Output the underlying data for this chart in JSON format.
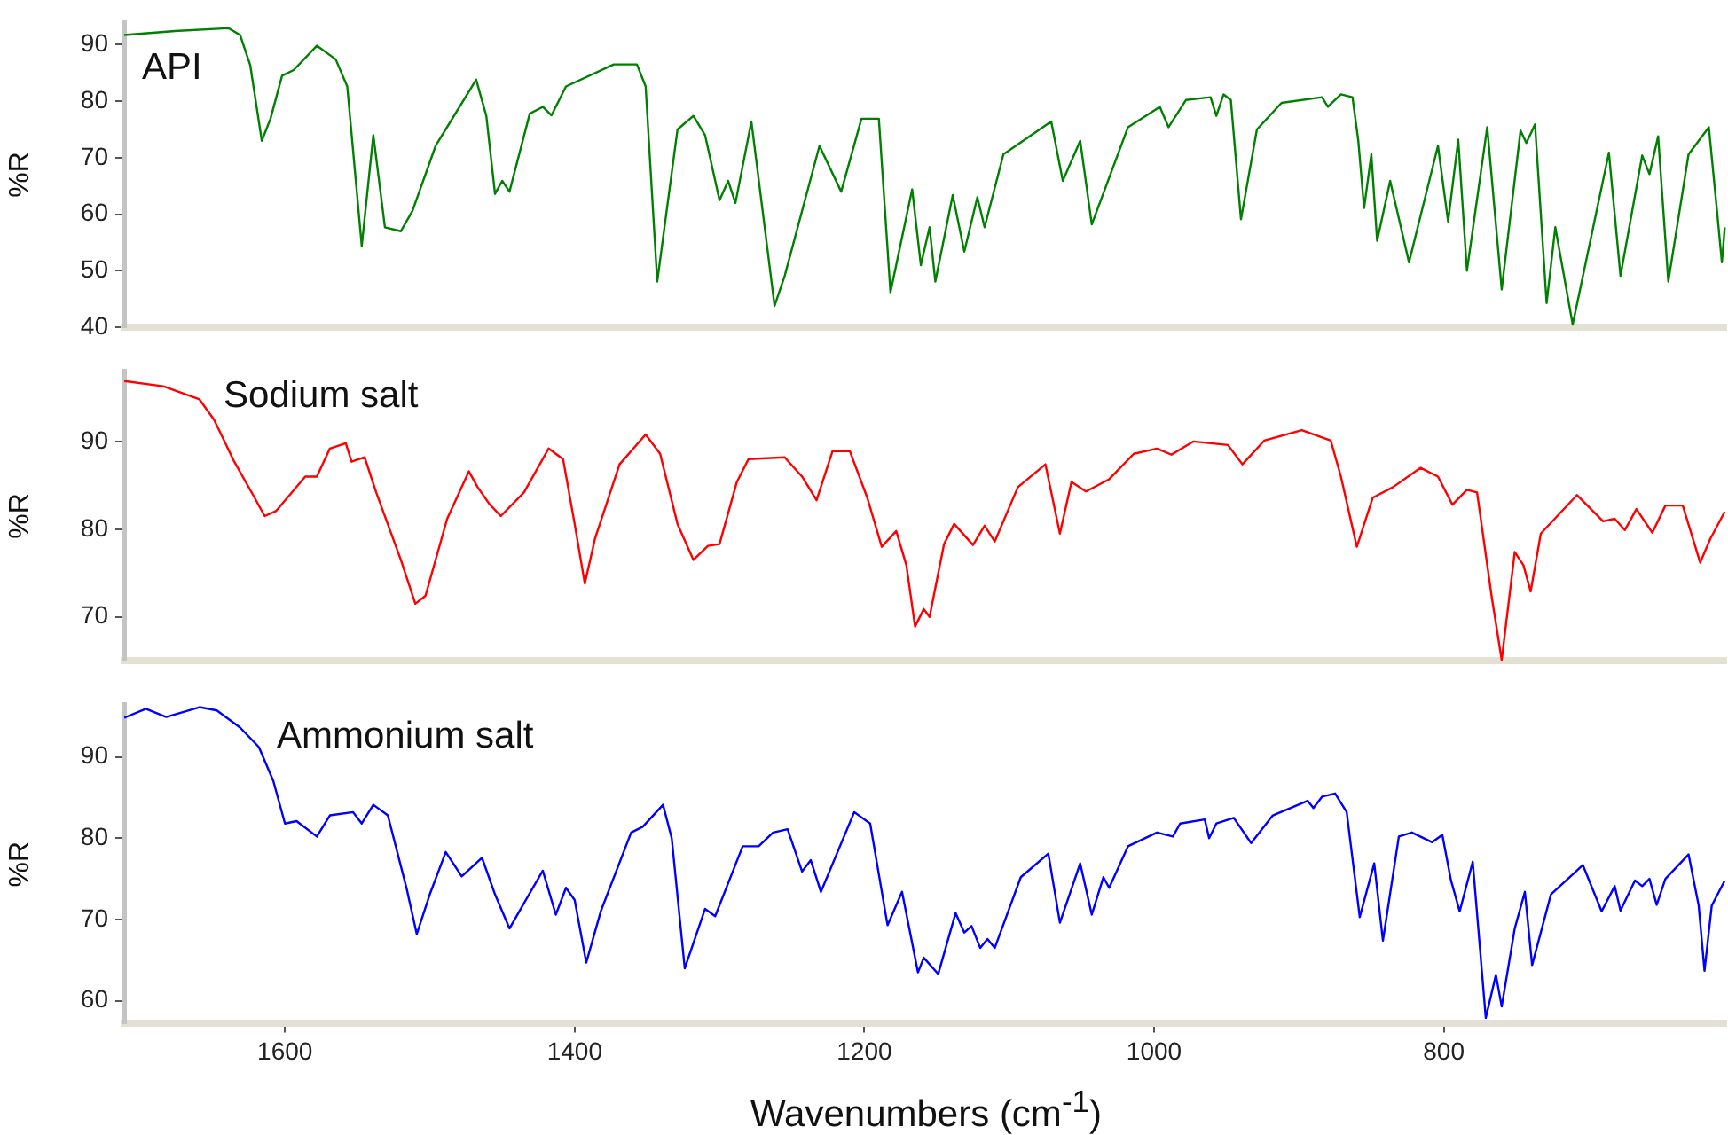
{
  "chart_data": [
    {
      "type": "line",
      "ylabel": "%R",
      "xlim": [
        1711,
        605
      ],
      "ylim": [
        40,
        94
      ],
      "yticks": [
        40,
        50,
        60,
        70,
        80,
        90
      ],
      "tick_labels": "y",
      "series": [
        {
          "name": "API",
          "color": "#008000",
          "x": [
            1711,
            1676,
            1639,
            1631,
            1624,
            1616,
            1610,
            1602,
            1594,
            1578,
            1565,
            1557,
            1547,
            1539,
            1531,
            1520,
            1512,
            1496,
            1468,
            1461,
            1455,
            1450,
            1445,
            1431,
            1422,
            1416,
            1406,
            1373,
            1357,
            1351,
            1343,
            1329,
            1318,
            1310,
            1300,
            1294,
            1289,
            1278,
            1262,
            1255,
            1231,
            1216,
            1202,
            1190,
            1182,
            1167,
            1161,
            1155,
            1151,
            1139,
            1131,
            1122,
            1117,
            1104,
            1071,
            1063,
            1051,
            1043,
            1018,
            996,
            990,
            978,
            961,
            957,
            952,
            947,
            940,
            929,
            912,
            884,
            880,
            871,
            863,
            859,
            855,
            850,
            846,
            837,
            824,
            804,
            797,
            790,
            784,
            770,
            760,
            747,
            743,
            737,
            729,
            723,
            711,
            686,
            678,
            663,
            658,
            652,
            645,
            631,
            617,
            611,
            608,
            606
          ],
          "values": [
            91.7,
            92.4,
            92.9,
            91.7,
            86.4,
            73.0,
            76.9,
            84.5,
            85.5,
            89.8,
            87.4,
            82.6,
            54.4,
            74.0,
            57.7,
            57.0,
            60.6,
            72.1,
            83.8,
            77.4,
            63.6,
            65.9,
            64.0,
            77.8,
            79.0,
            77.5,
            82.6,
            86.5,
            86.5,
            82.6,
            48.1,
            75.0,
            77.4,
            74.0,
            62.5,
            65.9,
            62.0,
            76.4,
            43.8,
            49.1,
            72.1,
            64.0,
            76.9,
            76.9,
            46.2,
            64.4,
            51.0,
            57.7,
            48.1,
            63.4,
            53.4,
            63.0,
            57.7,
            70.6,
            76.4,
            65.9,
            73.0,
            58.2,
            75.4,
            79.0,
            75.4,
            80.2,
            80.7,
            77.4,
            81.2,
            80.2,
            59.1,
            75.0,
            79.7,
            80.7,
            79.0,
            81.2,
            80.7,
            73.0,
            61.1,
            70.6,
            55.3,
            65.9,
            51.5,
            72.1,
            58.7,
            73.2,
            50.0,
            75.4,
            46.7,
            74.8,
            72.6,
            75.9,
            44.3,
            57.7,
            40.5,
            70.9,
            49.1,
            70.4,
            67.1,
            73.8,
            48.1,
            70.6,
            75.4,
            59.6,
            51.5,
            57.7
          ]
        }
      ]
    },
    {
      "type": "line",
      "ylabel": "%R",
      "xlim": [
        1711,
        605
      ],
      "ylim": [
        65,
        98
      ],
      "yticks": [
        70,
        80,
        90
      ],
      "tick_labels": "y",
      "series": [
        {
          "name": "Sodium salt",
          "color": "#ff0000",
          "x": [
            1711,
            1684,
            1659,
            1649,
            1635,
            1622,
            1614,
            1606,
            1586,
            1578,
            1569,
            1558,
            1554,
            1545,
            1537,
            1520,
            1510,
            1503,
            1488,
            1473,
            1467,
            1459,
            1451,
            1435,
            1418,
            1408,
            1400,
            1393,
            1386,
            1369,
            1351,
            1341,
            1329,
            1318,
            1308,
            1300,
            1288,
            1280,
            1255,
            1243,
            1233,
            1222,
            1210,
            1198,
            1188,
            1178,
            1171,
            1165,
            1159,
            1155,
            1145,
            1138,
            1125,
            1117,
            1110,
            1094,
            1075,
            1065,
            1057,
            1047,
            1031,
            1014,
            998,
            988,
            973,
            949,
            939,
            924,
            898,
            878,
            871,
            860,
            849,
            835,
            816,
            804,
            794,
            784,
            777,
            767,
            760,
            751,
            745,
            740,
            733,
            708,
            690,
            682,
            675,
            667,
            656,
            647,
            635,
            623,
            616,
            606
          ],
          "values": [
            96.9,
            96.3,
            94.8,
            92.5,
            87.7,
            83.9,
            81.5,
            82.1,
            86.0,
            86.0,
            89.2,
            89.8,
            87.7,
            88.2,
            84.2,
            76.5,
            71.5,
            72.4,
            81.2,
            86.6,
            84.8,
            82.9,
            81.5,
            84.2,
            89.2,
            88.0,
            80.6,
            73.8,
            78.9,
            87.4,
            90.8,
            88.6,
            80.6,
            76.5,
            78.1,
            78.3,
            85.4,
            88.0,
            88.2,
            86.0,
            83.3,
            88.9,
            88.9,
            83.6,
            78.0,
            79.8,
            75.9,
            68.9,
            70.9,
            70.0,
            78.3,
            80.6,
            78.2,
            80.4,
            78.6,
            84.8,
            87.4,
            79.5,
            85.4,
            84.3,
            85.7,
            88.6,
            89.2,
            88.5,
            90.0,
            89.6,
            87.4,
            90.1,
            91.3,
            90.1,
            86.0,
            78.0,
            83.6,
            84.8,
            87.0,
            86.0,
            82.8,
            84.5,
            84.2,
            72.4,
            65.1,
            77.4,
            75.9,
            72.9,
            79.5,
            83.9,
            80.9,
            81.2,
            79.9,
            82.3,
            79.6,
            82.7,
            82.7,
            76.2,
            78.9,
            82.0
          ]
        }
      ]
    },
    {
      "type": "line",
      "ylabel": "%R",
      "xlabel": "Wavenumbers (cm$^{-1}$)",
      "xlim": [
        1711,
        605
      ],
      "xticks": [
        1600,
        1400,
        1200,
        1000,
        800
      ],
      "ylim": [
        57.2,
        96.4
      ],
      "yticks": [
        60,
        70,
        80,
        90
      ],
      "series": [
        {
          "name": "Ammonium salt",
          "color": "#0000ff",
          "x": [
            1711,
            1696,
            1682,
            1659,
            1647,
            1631,
            1618,
            1608,
            1600,
            1592,
            1578,
            1569,
            1553,
            1547,
            1539,
            1529,
            1516,
            1509,
            1500,
            1489,
            1478,
            1464,
            1455,
            1445,
            1435,
            1422,
            1413,
            1406,
            1400,
            1392,
            1382,
            1361,
            1353,
            1339,
            1333,
            1324,
            1310,
            1303,
            1284,
            1273,
            1263,
            1253,
            1243,
            1237,
            1230,
            1207,
            1196,
            1184,
            1174,
            1163,
            1159,
            1149,
            1137,
            1131,
            1126,
            1120,
            1115,
            1110,
            1092,
            1073,
            1065,
            1051,
            1043,
            1035,
            1031,
            1018,
            998,
            987,
            982,
            965,
            962,
            957,
            945,
            933,
            918,
            894,
            890,
            884,
            875,
            867,
            858,
            848,
            842,
            831,
            822,
            808,
            801,
            795,
            789,
            780,
            771,
            764,
            760,
            751,
            744,
            739,
            726,
            704,
            691,
            682,
            678,
            668,
            663,
            658,
            653,
            647,
            631,
            624,
            620,
            615,
            606
          ],
          "values": [
            94.8,
            95.9,
            94.9,
            96.1,
            95.7,
            93.6,
            91.2,
            87.0,
            81.8,
            82.1,
            80.2,
            82.8,
            83.2,
            81.8,
            84.1,
            82.8,
            73.8,
            68.2,
            73.1,
            78.3,
            75.3,
            77.6,
            73.1,
            68.9,
            72.0,
            76.0,
            70.6,
            73.9,
            72.4,
            64.7,
            71.0,
            80.7,
            81.4,
            84.1,
            80.0,
            64.0,
            71.3,
            70.4,
            79.0,
            79.0,
            80.7,
            81.1,
            75.9,
            77.3,
            73.4,
            83.2,
            81.8,
            69.3,
            73.4,
            63.5,
            65.3,
            63.3,
            70.8,
            68.4,
            69.2,
            66.5,
            67.6,
            66.5,
            75.2,
            78.1,
            69.6,
            76.9,
            70.6,
            75.2,
            73.9,
            79.0,
            80.7,
            80.2,
            81.8,
            82.3,
            80.0,
            81.8,
            82.5,
            79.4,
            82.8,
            84.6,
            83.7,
            85.1,
            85.5,
            83.2,
            70.3,
            76.9,
            67.4,
            80.2,
            80.7,
            79.5,
            80.4,
            74.8,
            71.0,
            77.1,
            57.9,
            63.2,
            59.3,
            68.9,
            73.4,
            64.4,
            73.1,
            76.7,
            71.0,
            74.1,
            71.1,
            74.8,
            74.1,
            75.0,
            71.8,
            75.0,
            78.0,
            71.7,
            63.7,
            71.7,
            74.8
          ]
        }
      ]
    }
  ]
}
